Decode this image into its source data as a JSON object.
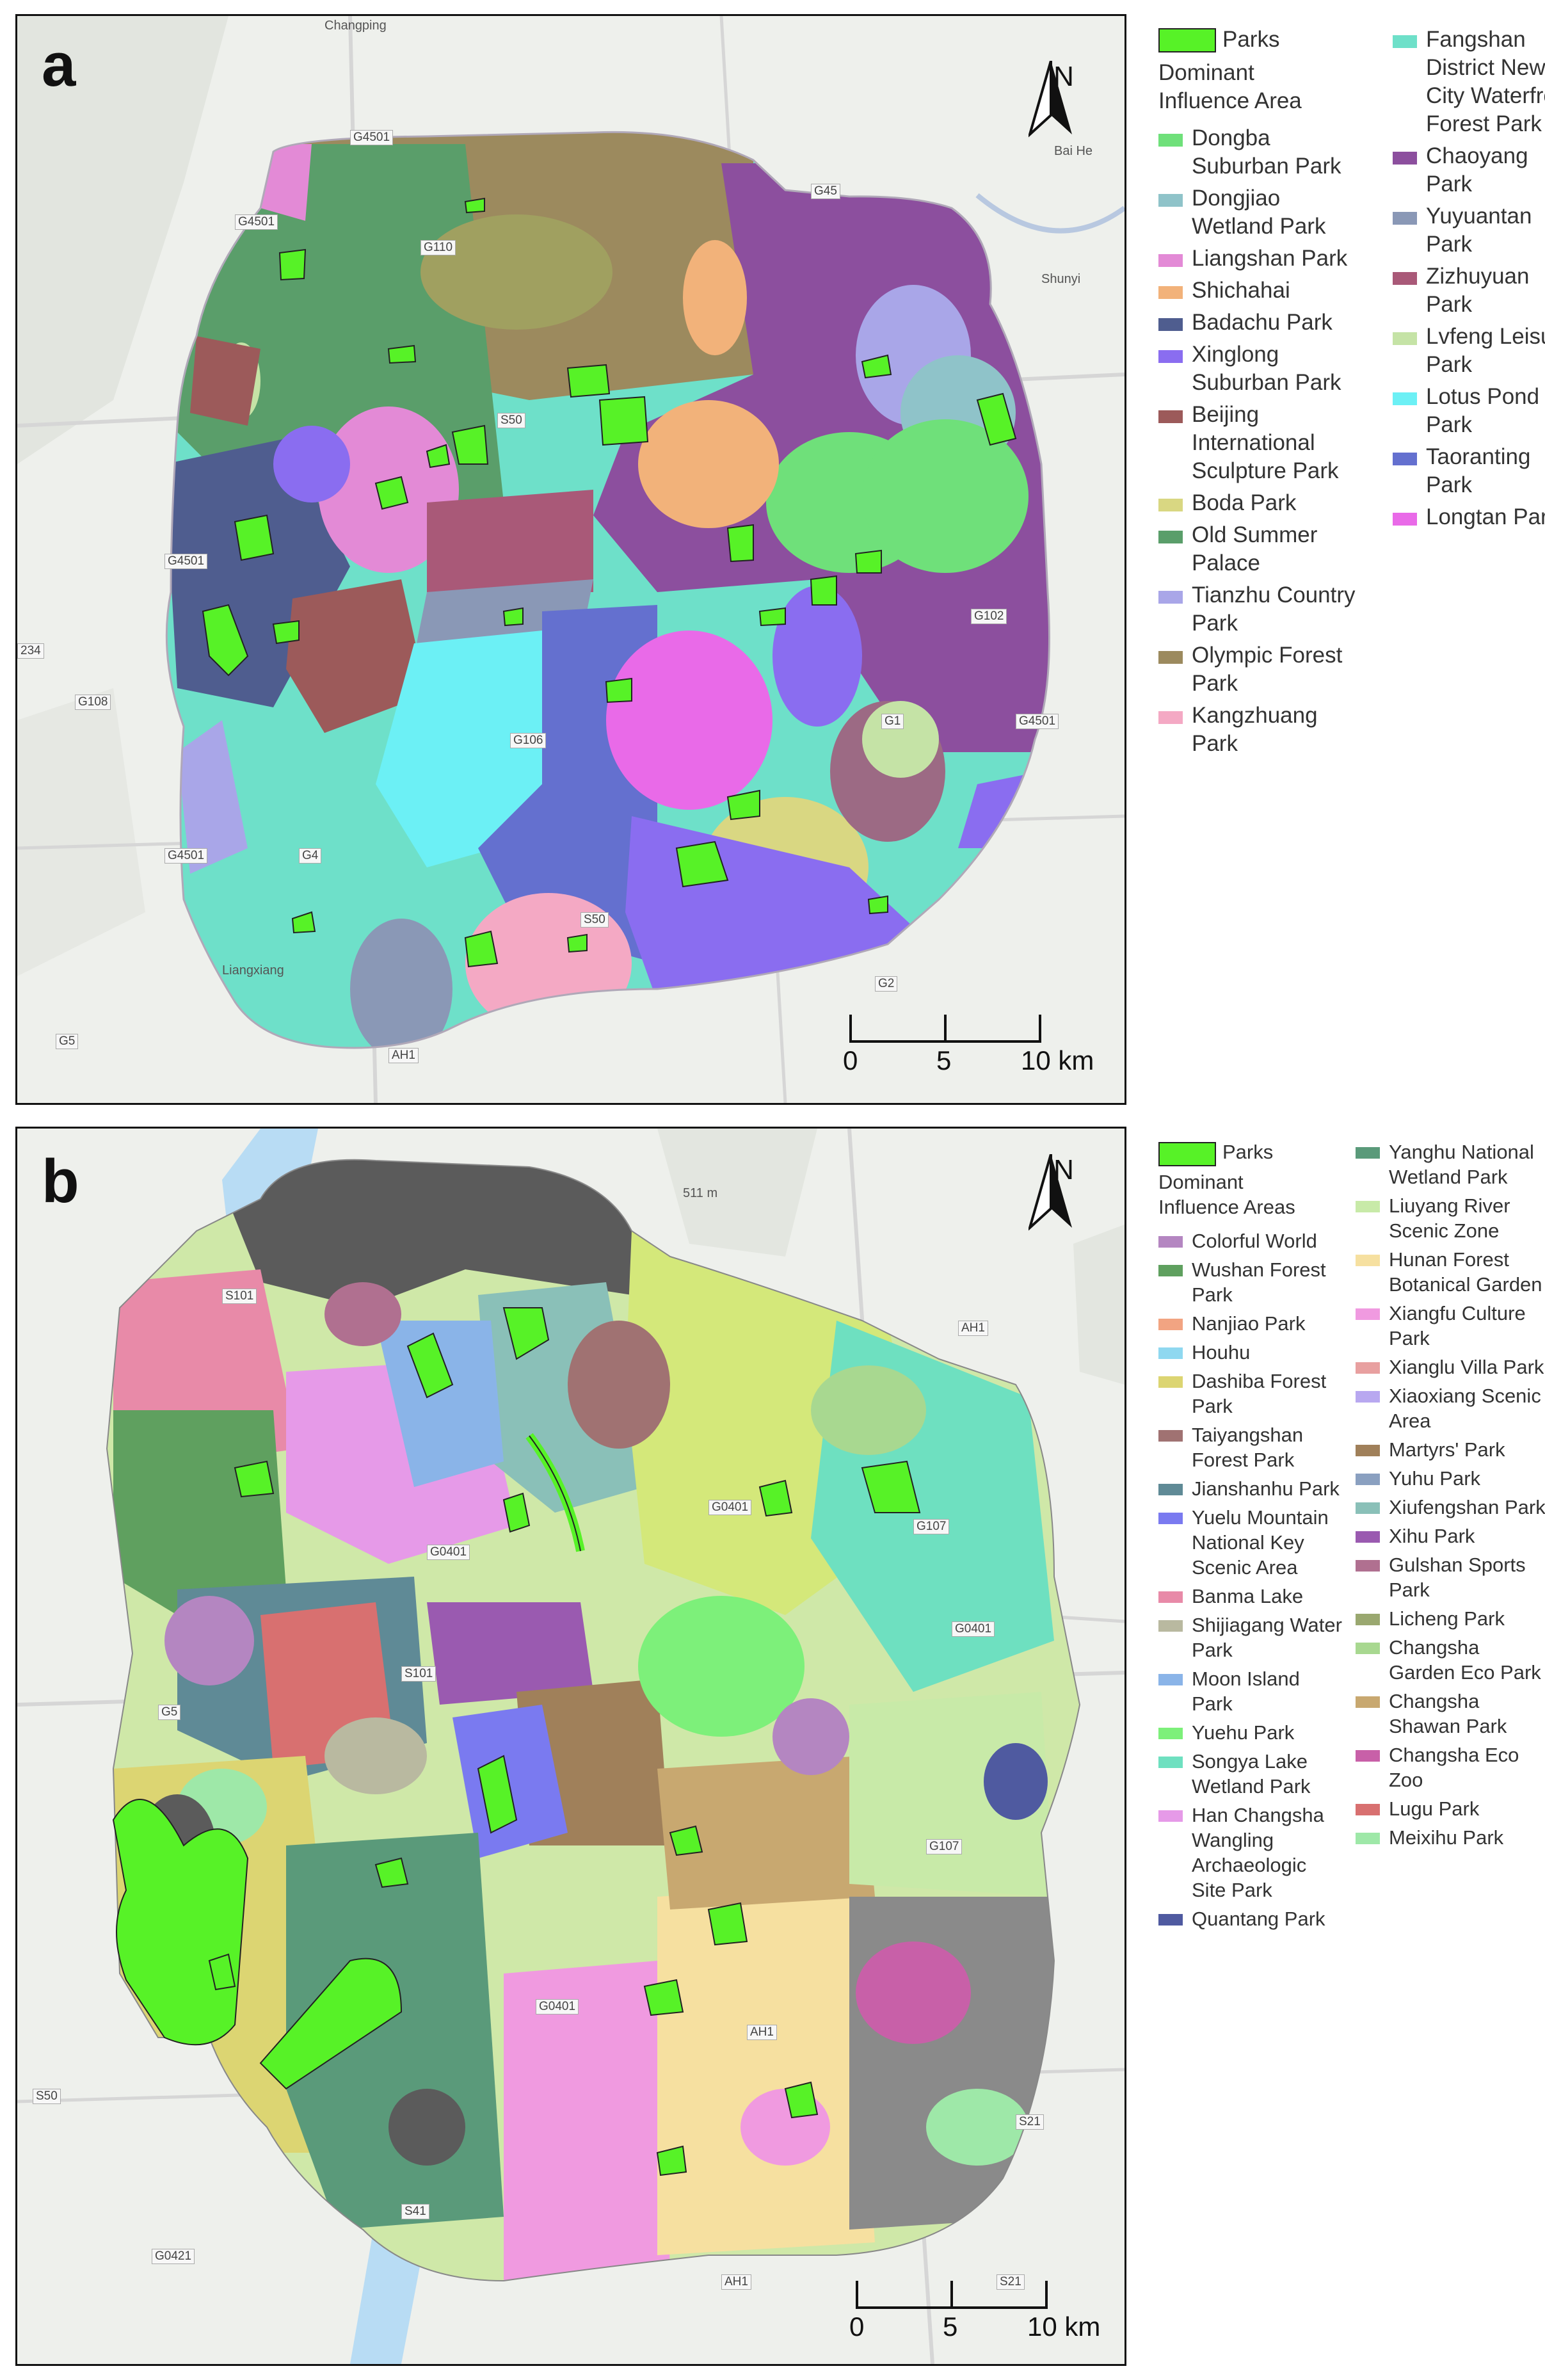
{
  "panel_a": {
    "letter": "a",
    "place_labels": [
      "Changping",
      "Shunyi",
      "Liangxiang",
      "Bai He"
    ],
    "road_labels": [
      "G4501",
      "G45",
      "G4501",
      "G110",
      "G4501",
      "234",
      "G108",
      "G106",
      "G4",
      "G4501",
      "G5",
      "S50",
      "G2",
      "G102",
      "G4501",
      "G1",
      "AH1",
      "S50"
    ],
    "north": "N",
    "scale": {
      "ticks": [
        "0",
        "5",
        "10 km"
      ]
    },
    "legend": {
      "parks_label": "Parks",
      "title": "Dominant Influence Area",
      "items": [
        {
          "label": "Dongba Suburban Park",
          "color": "#6fe07a"
        },
        {
          "label": "Dongjiao Wetland Park",
          "color": "#8fc3c9"
        },
        {
          "label": "Liangshan Park",
          "color": "#e38ad6"
        },
        {
          "label": "Shichahai",
          "color": "#f2b27a"
        },
        {
          "label": "Badachu Park",
          "color": "#4f5d8f"
        },
        {
          "label": "Xinglong Suburban Park",
          "color": "#8a6df0"
        },
        {
          "label": "Beijing International Sculpture Park",
          "color": "#9c5a5a"
        },
        {
          "label": "Boda Park",
          "color": "#d9d782"
        },
        {
          "label": "Old Summer Palace",
          "color": "#5a9e6a"
        },
        {
          "label": "Tianzhu Country Park",
          "color": "#a9a6e8"
        },
        {
          "label": "Olympic Forest Park",
          "color": "#9c8a5e"
        },
        {
          "label": "Kangzhuang Park",
          "color": "#f4a9c4"
        },
        {
          "label": "Fangshan District New City Waterfront Forest Park",
          "color": "#6ee0c9"
        },
        {
          "label": "Chaoyang Park",
          "color": "#8c4f9e"
        },
        {
          "label": "Yuyuantan Park",
          "color": "#8a98b6"
        },
        {
          "label": "Zizhuyuan Park",
          "color": "#a95978"
        },
        {
          "label": "Lvfeng Leisure Park",
          "color": "#c5e3a6"
        },
        {
          "label": "Lotus Pond Park",
          "color": "#6cf0f5"
        },
        {
          "label": "Taoranting Park",
          "color": "#6470cf"
        },
        {
          "label": "Longtan Park",
          "color": "#e96ae8"
        }
      ]
    }
  },
  "panel_b": {
    "letter": "b",
    "place_labels": [
      "511 m"
    ],
    "road_labels": [
      "S101",
      "AH1",
      "G0401",
      "G107",
      "G0401",
      "S101",
      "G5",
      "G0401",
      "G107",
      "G0401",
      "AH1",
      "S50",
      "S41",
      "S21",
      "G0421",
      "AH1",
      "S21"
    ],
    "north": "N",
    "scale": {
      "ticks": [
        "0",
        "5",
        "10 km"
      ]
    },
    "legend": {
      "parks_label": "Parks",
      "title": "Dominant Influence Areas",
      "items": [
        {
          "label": "Colorful World",
          "color": "#b486c1"
        },
        {
          "label": "Wushan Forest Park",
          "color": "#5fa05f"
        },
        {
          "label": "Nanjiao Park",
          "color": "#f2a482"
        },
        {
          "label": "Houhu",
          "color": "#8fd8f0"
        },
        {
          "label": "Dashiba Forest Park",
          "color": "#dcd572"
        },
        {
          "label": "Taiyangshan Forest Park",
          "color": "#a07272"
        },
        {
          "label": "Jianshanhu Park",
          "color": "#5f8a96"
        },
        {
          "label": "Yuelu Mountain National Key Scenic Area",
          "color": "#7a7af0"
        },
        {
          "label": "Banma Lake",
          "color": "#e88aa8"
        },
        {
          "label": "Shijiagang Water Park",
          "color": "#b9b9a0"
        },
        {
          "label": "Moon Island Park",
          "color": "#8ab4e8"
        },
        {
          "label": "Yuehu Park",
          "color": "#7df07a"
        },
        {
          "label": "Songya Lake Wetland Park",
          "color": "#6ee0c0"
        },
        {
          "label": "Han Changsha Wangling Archaeologic Site Park",
          "color": "#e69ae8"
        },
        {
          "label": "Quantang Park",
          "color": "#4f5aa0"
        },
        {
          "label": "Yanghu National Wetland Park",
          "color": "#5a9a7a"
        },
        {
          "label": "Liuyang River Scenic Zone",
          "color": "#c8eaa8"
        },
        {
          "label": "Hunan Forest Botanical Garden",
          "color": "#f6e0a0"
        },
        {
          "label": "Xiangfu Culture Park",
          "color": "#f09ae0"
        },
        {
          "label": "Xianglu Villa Park",
          "color": "#e8a0a0"
        },
        {
          "label": "Xiaoxiang Scenic Area",
          "color": "#b8a8f0"
        },
        {
          "label": "Martyrs' Park",
          "color": "#a0805a"
        },
        {
          "label": "Yuhu Park",
          "color": "#8aa0c0"
        },
        {
          "label": "Xiufengshan Park",
          "color": "#8ac0b8"
        },
        {
          "label": "Xihu Park",
          "color": "#9a5ab0"
        },
        {
          "label": "Gulshan Sports Park",
          "color": "#b07090"
        },
        {
          "label": "Licheng Park",
          "color": "#9aa870"
        },
        {
          "label": "Changsha Garden Eco Park",
          "color": "#a8d890"
        },
        {
          "label": "Changsha Shawan Park",
          "color": "#c8a870"
        },
        {
          "label": "Changsha Eco Zoo",
          "color": "#c860a8"
        },
        {
          "label": "Lugu Park",
          "color": "#d87070"
        },
        {
          "label": "Meixihu Park",
          "color": "#9ee8a8"
        }
      ]
    }
  }
}
